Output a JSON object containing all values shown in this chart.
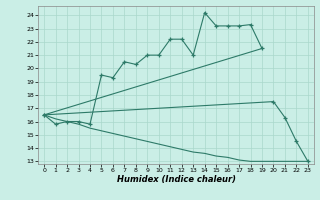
{
  "xlabel": "Humidex (Indice chaleur)",
  "bg_color": "#caeee6",
  "grid_color": "#aad8cc",
  "line_color": "#2d7a68",
  "xlim": [
    -0.5,
    23.5
  ],
  "ylim": [
    12.8,
    24.7
  ],
  "yticks": [
    13,
    14,
    15,
    16,
    17,
    18,
    19,
    20,
    21,
    22,
    23,
    24
  ],
  "xticks": [
    0,
    1,
    2,
    3,
    4,
    5,
    6,
    7,
    8,
    9,
    10,
    11,
    12,
    13,
    14,
    15,
    16,
    17,
    18,
    19,
    20,
    21,
    22,
    23
  ],
  "line1_x": [
    0,
    1,
    2,
    3,
    4,
    5,
    6,
    7,
    8,
    9,
    10,
    11,
    12,
    13,
    14,
    15,
    16,
    17,
    18,
    19
  ],
  "line1_y": [
    16.5,
    15.8,
    16.0,
    16.0,
    15.8,
    19.5,
    19.3,
    20.5,
    20.3,
    21.0,
    21.0,
    22.2,
    22.2,
    21.0,
    24.2,
    23.2,
    23.2,
    23.2,
    23.3,
    21.5
  ],
  "line2_x": [
    0,
    19
  ],
  "line2_y": [
    16.5,
    21.5
  ],
  "line3_x": [
    0,
    20,
    21,
    22,
    23
  ],
  "line3_y": [
    16.5,
    17.5,
    16.3,
    14.5,
    13.0
  ],
  "line4_x": [
    0,
    1,
    2,
    3,
    4,
    5,
    6,
    7,
    8,
    9,
    10,
    11,
    12,
    13,
    14,
    15,
    16,
    17,
    18,
    19,
    20,
    21,
    22,
    23
  ],
  "line4_y": [
    16.5,
    16.2,
    16.0,
    15.8,
    15.5,
    15.3,
    15.1,
    14.9,
    14.7,
    14.5,
    14.3,
    14.1,
    13.9,
    13.7,
    13.6,
    13.4,
    13.3,
    13.1,
    13.0,
    13.0,
    13.0,
    13.0,
    13.0,
    13.0
  ]
}
